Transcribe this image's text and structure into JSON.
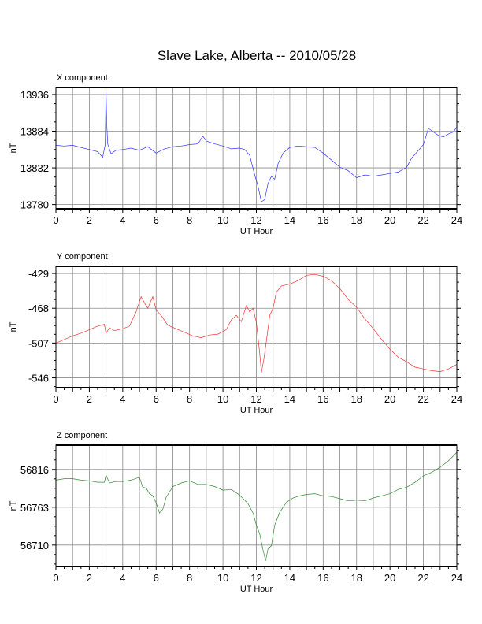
{
  "page_title": "Slave Lake, Alberta -- 2010/05/28",
  "chart_data": [
    {
      "type": "line",
      "title": "X component",
      "xlabel": "UT Hour",
      "ylabel": "nT",
      "xlim": [
        0,
        24
      ],
      "ylim": [
        13774,
        13946
      ],
      "x_ticks": [
        0,
        2,
        4,
        6,
        8,
        10,
        12,
        14,
        16,
        18,
        20,
        22,
        24
      ],
      "y_ticks": [
        13780,
        13832,
        13884,
        13936
      ],
      "grid": true,
      "color": "#3333ff",
      "series": [
        {
          "x": [
            0,
            0.5,
            1,
            1.5,
            2,
            2.5,
            2.8,
            2.95,
            3.0,
            3.05,
            3.1,
            3.3,
            3.6,
            4,
            4.5,
            5,
            5.5,
            6,
            6.5,
            7,
            7.5,
            8,
            8.5,
            8.8,
            9,
            9.5,
            10,
            10.5,
            11,
            11.3,
            11.6,
            11.9,
            12.1,
            12.3,
            12.5,
            12.7,
            12.9,
            13.1,
            13.3,
            13.6,
            14,
            14.5,
            15,
            15.5,
            16,
            16.5,
            17,
            17.5,
            18,
            18.5,
            19,
            19.5,
            20,
            20.5,
            21,
            21.3,
            21.6,
            22,
            22.3,
            22.6,
            22.9,
            23.2,
            23.5,
            23.8,
            24
          ],
          "y": [
            13864,
            13863,
            13864,
            13861,
            13858,
            13855,
            13847,
            13865,
            13938,
            13890,
            13866,
            13852,
            13857,
            13858,
            13860,
            13857,
            13862,
            13853,
            13859,
            13862,
            13863,
            13865,
            13866,
            13877,
            13870,
            13866,
            13863,
            13859,
            13860,
            13858,
            13850,
            13822,
            13806,
            13784,
            13787,
            13810,
            13820,
            13816,
            13838,
            13853,
            13861,
            13863,
            13862,
            13861,
            13853,
            13843,
            13833,
            13828,
            13818,
            13822,
            13820,
            13822,
            13824,
            13826,
            13833,
            13846,
            13854,
            13865,
            13888,
            13883,
            13878,
            13876,
            13880,
            13883,
            13890
          ]
        }
      ]
    },
    {
      "type": "line",
      "title": "Y component",
      "xlabel": "UT Hour",
      "ylabel": "nT",
      "xlim": [
        0,
        24
      ],
      "ylim": [
        -557,
        -421
      ],
      "x_ticks": [
        0,
        2,
        4,
        6,
        8,
        10,
        12,
        14,
        16,
        18,
        20,
        22,
        24
      ],
      "y_ticks": [
        -429,
        -468,
        -507,
        -546
      ],
      "grid": true,
      "color": "#ee3333",
      "series": [
        {
          "x": [
            0,
            0.5,
            1,
            1.5,
            2,
            2.5,
            2.9,
            3.0,
            3.2,
            3.5,
            4,
            4.4,
            4.8,
            5.1,
            5.3,
            5.5,
            5.8,
            6.0,
            6.3,
            6.7,
            7.2,
            7.7,
            8.2,
            8.7,
            9.2,
            9.7,
            10.2,
            10.5,
            10.8,
            11.1,
            11.4,
            11.6,
            11.8,
            12.0,
            12.2,
            12.3,
            12.45,
            12.6,
            12.8,
            13.0,
            13.2,
            13.5,
            14,
            14.5,
            15,
            15.5,
            16,
            16.5,
            17,
            17.5,
            18,
            18.5,
            19,
            19.5,
            20,
            20.5,
            21,
            21.5,
            22,
            22.5,
            23,
            23.5,
            24
          ],
          "y": [
            -507,
            -503,
            -499,
            -496,
            -492,
            -488,
            -486,
            -496,
            -490,
            -493,
            -491,
            -488,
            -472,
            -455,
            -462,
            -468,
            -455,
            -470,
            -476,
            -487,
            -491,
            -495,
            -499,
            -501,
            -498,
            -497,
            -492,
            -481,
            -476,
            -483,
            -465,
            -472,
            -468,
            -484,
            -518,
            -540,
            -525,
            -505,
            -476,
            -468,
            -450,
            -443,
            -441,
            -437,
            -431,
            -430,
            -432,
            -437,
            -446,
            -458,
            -467,
            -480,
            -491,
            -503,
            -514,
            -523,
            -528,
            -534,
            -536,
            -538,
            -539,
            -536,
            -531
          ]
        }
      ]
    },
    {
      "type": "line",
      "title": "Z component",
      "xlabel": "UT Hour",
      "ylabel": "nT",
      "xlim": [
        0,
        24
      ],
      "ylim": [
        56680,
        56850
      ],
      "x_ticks": [
        0,
        2,
        4,
        6,
        8,
        10,
        12,
        14,
        16,
        18,
        20,
        22,
        24
      ],
      "y_ticks": [
        56816,
        56763,
        56710
      ],
      "grid": true,
      "color": "#338833",
      "series": [
        {
          "x": [
            0,
            0.5,
            1,
            1.5,
            2,
            2.5,
            2.9,
            3.0,
            3.2,
            3.6,
            4,
            4.5,
            5,
            5.2,
            5.4,
            5.6,
            5.8,
            6.0,
            6.2,
            6.4,
            6.6,
            7,
            7.5,
            8,
            8.5,
            9,
            9.5,
            10,
            10.5,
            11,
            11.5,
            11.8,
            12.0,
            12.2,
            12.4,
            12.55,
            12.7,
            12.9,
            13.1,
            13.4,
            13.8,
            14.2,
            14.6,
            15,
            15.5,
            16,
            16.5,
            17,
            17.5,
            18,
            18.5,
            19,
            19.5,
            20,
            20.5,
            21,
            21.5,
            22,
            22.5,
            23,
            23.5,
            24
          ],
          "y": [
            56801,
            56803,
            56803,
            56801,
            56800,
            56798,
            56798,
            56808,
            56797,
            56799,
            56799,
            56801,
            56805,
            56791,
            56790,
            56782,
            56779,
            56769,
            56755,
            56760,
            56777,
            56792,
            56797,
            56800,
            56795,
            56795,
            56792,
            56787,
            56788,
            56780,
            56768,
            56755,
            56738,
            56726,
            56703,
            56688,
            56705,
            56709,
            56738,
            56756,
            56770,
            56776,
            56779,
            56781,
            56782,
            56779,
            56778,
            56775,
            56772,
            56773,
            56772,
            56776,
            56779,
            56782,
            56788,
            56791,
            56798,
            56807,
            56812,
            56819,
            56828,
            56840
          ]
        }
      ]
    }
  ]
}
